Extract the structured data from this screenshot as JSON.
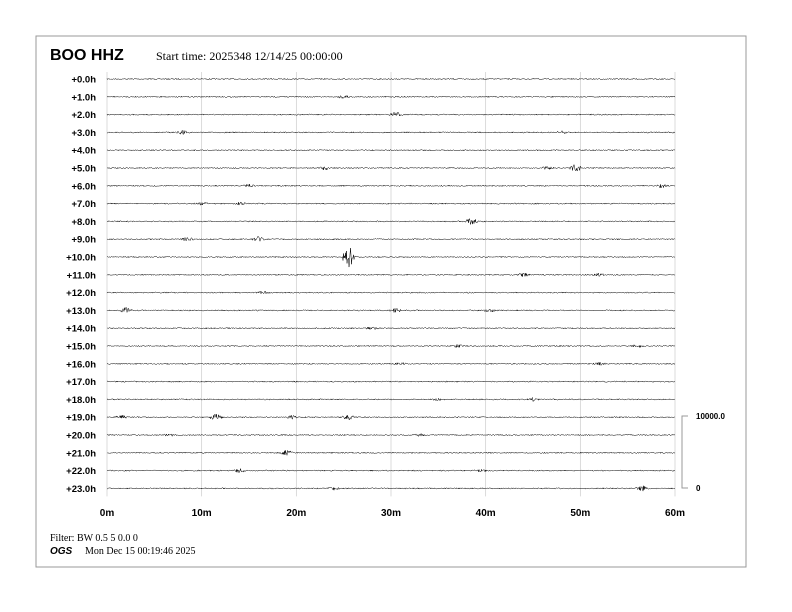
{
  "station": "BOO HHZ",
  "start_time": "Start time: 2025348 12/14/25 00:00:00",
  "filter": "Filter: BW 0.5 5 0.0 0",
  "org": "OGS",
  "generated": "Mon Dec 15 00:19:46 2025",
  "chart_data": {
    "type": "line",
    "subtype": "helicorder",
    "row_labels": [
      "+0.0h",
      "+1.0h",
      "+2.0h",
      "+3.0h",
      "+4.0h",
      "+5.0h",
      "+6.0h",
      "+7.0h",
      "+8.0h",
      "+9.0h",
      "+10.0h",
      "+11.0h",
      "+12.0h",
      "+13.0h",
      "+14.0h",
      "+15.0h",
      "+16.0h",
      "+17.0h",
      "+18.0h",
      "+19.0h",
      "+20.0h",
      "+21.0h",
      "+22.0h",
      "+23.0h"
    ],
    "x_ticks": [
      "0m",
      "10m",
      "20m",
      "30m",
      "40m",
      "50m",
      "60m"
    ],
    "xlim": [
      0,
      60
    ],
    "grid": true,
    "scale_labels": [
      "10000.0",
      "0"
    ],
    "trace_color": "#000000",
    "grid_color": "#cccccc",
    "events": [
      {
        "hour": 1,
        "minute": 25,
        "amp": 1.5
      },
      {
        "hour": 2,
        "minute": 30.5,
        "amp": 2
      },
      {
        "hour": 3,
        "minute": 8,
        "amp": 1.5
      },
      {
        "hour": 3,
        "minute": 48,
        "amp": 1
      },
      {
        "hour": 5,
        "minute": 23,
        "amp": 1.5
      },
      {
        "hour": 5,
        "minute": 49.5,
        "amp": 3
      },
      {
        "hour": 5,
        "minute": 46.5,
        "amp": 1
      },
      {
        "hour": 6,
        "minute": 15,
        "amp": 1.2
      },
      {
        "hour": 6,
        "minute": 58.5,
        "amp": 1.5
      },
      {
        "hour": 7,
        "minute": 10,
        "amp": 1
      },
      {
        "hour": 7,
        "minute": 14,
        "amp": 1
      },
      {
        "hour": 8,
        "minute": 38.5,
        "amp": 2.5
      },
      {
        "hour": 9,
        "minute": 8.5,
        "amp": 1.5
      },
      {
        "hour": 9,
        "minute": 16,
        "amp": 2
      },
      {
        "hour": 10,
        "minute": 25.5,
        "amp": 9
      },
      {
        "hour": 11,
        "minute": 44,
        "amp": 1.5
      },
      {
        "hour": 11,
        "minute": 52,
        "amp": 1
      },
      {
        "hour": 12,
        "minute": 16.5,
        "amp": 1
      },
      {
        "hour": 13,
        "minute": 2,
        "amp": 2
      },
      {
        "hour": 13,
        "minute": 30.5,
        "amp": 1.5
      },
      {
        "hour": 13,
        "minute": 40.5,
        "amp": 1.2
      },
      {
        "hour": 14,
        "minute": 28,
        "amp": 1
      },
      {
        "hour": 15,
        "minute": 37,
        "amp": 1
      },
      {
        "hour": 15,
        "minute": 56,
        "amp": 1
      },
      {
        "hour": 16,
        "minute": 52,
        "amp": 1
      },
      {
        "hour": 16,
        "minute": 31,
        "amp": 0.8
      },
      {
        "hour": 18,
        "minute": 45,
        "amp": 1.2
      },
      {
        "hour": 18,
        "minute": 35,
        "amp": 0.8
      },
      {
        "hour": 19,
        "minute": 1.5,
        "amp": 1.5
      },
      {
        "hour": 19,
        "minute": 11.5,
        "amp": 2.5
      },
      {
        "hour": 19,
        "minute": 19.5,
        "amp": 1.2
      },
      {
        "hour": 19,
        "minute": 25.5,
        "amp": 2
      },
      {
        "hour": 20,
        "minute": 6.5,
        "amp": 0.8
      },
      {
        "hour": 20,
        "minute": 33,
        "amp": 0.8
      },
      {
        "hour": 21,
        "minute": 19,
        "amp": 2
      },
      {
        "hour": 22,
        "minute": 14,
        "amp": 1.5
      },
      {
        "hour": 22,
        "minute": 39.5,
        "amp": 1
      },
      {
        "hour": 23,
        "minute": 56.5,
        "amp": 2
      },
      {
        "hour": 23,
        "minute": 24,
        "amp": 1
      }
    ]
  }
}
